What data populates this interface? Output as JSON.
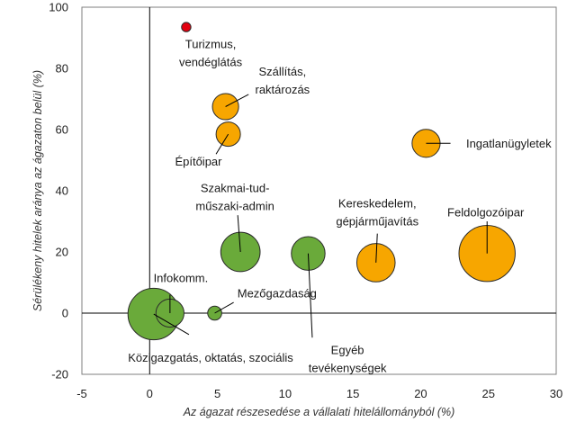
{
  "chart_data": {
    "type": "scatter",
    "bubble": true,
    "title": "",
    "xlabel": "Az ágazat részesedése a vállalati hitelállományból (%)",
    "ylabel": "Sérülékeny hitelek aránya az ágazaton belül  (%)",
    "xlim": [
      -5,
      30
    ],
    "ylim": [
      -20,
      100
    ],
    "xticks": [
      "-5",
      "0",
      "5",
      "10",
      "15",
      "20",
      "25",
      "30"
    ],
    "yticks": [
      "-20",
      "0",
      "20",
      "40",
      "60",
      "80",
      "100"
    ],
    "grid": false,
    "legend": "none",
    "colors": {
      "red": "#e3000f",
      "orange": "#f7a600",
      "green": "#6aaa3a"
    },
    "points": [
      {
        "label": "Turizmus,\nvendéglátás",
        "x": 2.7,
        "y": 93.5,
        "size": 1.0,
        "color": "red",
        "label_pos": [
          4.5,
          85
        ],
        "label_lines": [
          "Turizmus,",
          "vendéglátás"
        ],
        "leader": null
      },
      {
        "label": "Szállítás,\nraktározás",
        "x": 5.6,
        "y": 67.5,
        "size": 2.8,
        "color": "orange",
        "label_pos": [
          9.8,
          76
        ],
        "label_lines": [
          "Szállítás,",
          "raktározás"
        ],
        "leader": [
          7.3,
          71.5
        ]
      },
      {
        "label": "Építőipar",
        "x": 5.8,
        "y": 58.5,
        "size": 2.6,
        "color": "orange",
        "label_pos": [
          3.6,
          49.5
        ],
        "label_lines": [
          "Építőipar"
        ],
        "leader": [
          4.9,
          52
        ]
      },
      {
        "label": "Ingatlanügyletek",
        "x": 20.4,
        "y": 55.5,
        "size": 3.0,
        "color": "orange",
        "label_pos": [
          26.5,
          55.5
        ],
        "label_lines": [
          "Ingatlanügyletek"
        ],
        "leader": [
          22.2,
          55.5
        ]
      },
      {
        "label": "Szakmai-tud-\nműszaki-admin",
        "x": 6.7,
        "y": 20,
        "size": 4.2,
        "color": "green",
        "label_pos": [
          6.3,
          38
        ],
        "label_lines": [
          "Szakmai-tud-",
          "műszaki-admin"
        ],
        "leader": [
          6.5,
          32
        ]
      },
      {
        "label": "Egyéb\ntevékenységek",
        "x": 11.7,
        "y": 19.5,
        "size": 3.6,
        "color": "green",
        "label_pos": [
          14.6,
          -15
        ],
        "label_lines": [
          "Egyéb",
          "tevékenységek"
        ],
        "leader": [
          12,
          -8
        ]
      },
      {
        "label": "Kereskedelem,\ngépjárműjavítás",
        "x": 16.7,
        "y": 16.5,
        "size": 4.1,
        "color": "orange",
        "label_pos": [
          16.8,
          33
        ],
        "label_lines": [
          "Kereskedelem,",
          "gépjárműjavítás"
        ],
        "leader": [
          16.8,
          26
        ]
      },
      {
        "label": "Feldolgozóipar",
        "x": 24.9,
        "y": 19.5,
        "size": 6.0,
        "color": "orange",
        "label_pos": [
          24.8,
          33
        ],
        "label_lines": [
          "Feldolgozóipar"
        ],
        "leader": [
          24.9,
          30
        ]
      },
      {
        "label": "Infokomm.",
        "x": 1.5,
        "y": 0,
        "size": 3.0,
        "color": "green",
        "label_pos": [
          2.3,
          11.5
        ],
        "label_lines": [
          "Infokomm."
        ],
        "leader": [
          1.5,
          6
        ]
      },
      {
        "label": "Mezőgazdaság",
        "x": 4.8,
        "y": 0,
        "size": 1.5,
        "color": "green",
        "label_pos": [
          9.4,
          6.5
        ],
        "label_lines": [
          "Mezőgazdaság"
        ],
        "leader": [
          6.2,
          3.5
        ]
      },
      {
        "label": "Közigazgatás, oktatás, szociális",
        "x": 0.3,
        "y": -0.3,
        "size": 5.5,
        "color": "green",
        "label_pos": [
          4.5,
          -14.5
        ],
        "label_lines": [
          "Közigazgatás, oktatás, szociális"
        ],
        "leader": [
          2.9,
          -7
        ]
      }
    ]
  }
}
